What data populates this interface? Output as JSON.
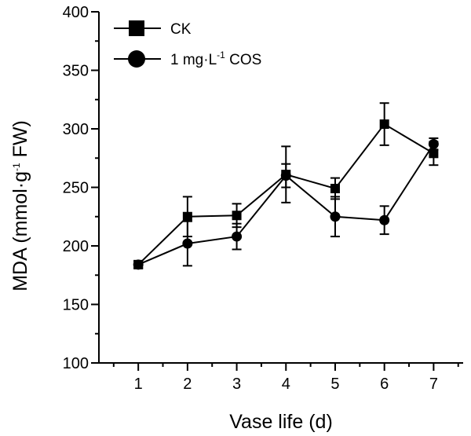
{
  "chart_data": {
    "type": "line",
    "title": "",
    "xlabel": "Vase life (d)",
    "ylabel_parts": [
      "MDA (mmol·g",
      "-1",
      " FW)"
    ],
    "x": [
      1,
      2,
      3,
      4,
      5,
      6,
      7
    ],
    "xlim": [
      0.2,
      7.6
    ],
    "ylim": [
      100,
      400
    ],
    "yticks": [
      100,
      150,
      200,
      250,
      300,
      350,
      400
    ],
    "grid": false,
    "legend_position": "top-left",
    "series": [
      {
        "name": "CK",
        "legend_parts": [
          "CK"
        ],
        "marker": "square",
        "values": [
          184,
          225,
          226,
          261,
          249,
          304,
          279
        ],
        "errors": [
          3,
          17,
          10,
          24,
          9,
          18,
          10
        ],
        "color": "#000000"
      },
      {
        "name": "1 mg·L-1 COS",
        "legend_parts": [
          "1 mg·L",
          "-1",
          " COS"
        ],
        "marker": "circle",
        "values": [
          184,
          202,
          208,
          260,
          225,
          222,
          287
        ],
        "errors": [
          3,
          19,
          11,
          10,
          17,
          12,
          5
        ],
        "color": "#000000"
      }
    ]
  }
}
